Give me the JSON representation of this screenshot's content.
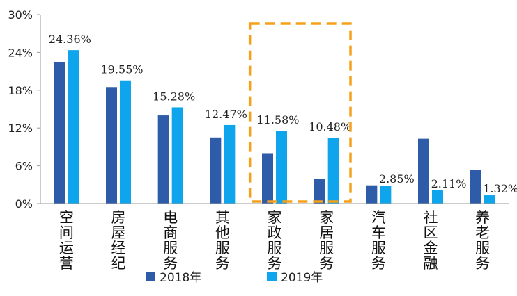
{
  "chart_data": {
    "type": "bar",
    "title": "",
    "xlabel": "",
    "ylabel": "",
    "ylim": [
      0,
      30
    ],
    "yticks": [
      "0%",
      "6%",
      "12%",
      "18%",
      "24%",
      "30%"
    ],
    "ytick_values": [
      0,
      6,
      12,
      18,
      24,
      30
    ],
    "categories": [
      "空间运营",
      "房屋经纪",
      "电商服务",
      "其他服务",
      "家政服务",
      "家居服务",
      "汽车服务",
      "社区金融",
      "养老服务"
    ],
    "series": [
      {
        "name": "2018年",
        "color": "#2e5ca8",
        "values": [
          22.5,
          18.5,
          14.0,
          10.5,
          8.0,
          3.9,
          2.9,
          10.3,
          5.4
        ]
      },
      {
        "name": "2019年",
        "color": "#0ea5ec",
        "values": [
          24.36,
          19.55,
          15.28,
          12.47,
          11.58,
          10.48,
          2.85,
          2.11,
          1.32
        ]
      }
    ],
    "data_labels": [
      "24.36%",
      "19.55%",
      "15.28%",
      "12.47%",
      "11.58%",
      "10.48%",
      "2.85%",
      "2.11%",
      "1.32%"
    ],
    "legend_position": "bottom",
    "grid": false,
    "annotation": {
      "type": "dashed-box",
      "color": "#f5a01a",
      "highlight_categories": [
        "家政服务",
        "家居服务"
      ]
    }
  }
}
